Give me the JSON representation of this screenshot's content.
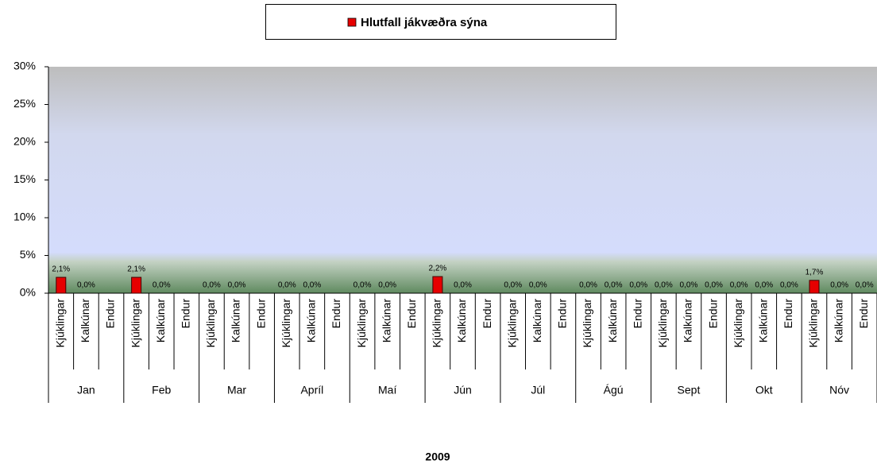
{
  "chart_data": {
    "type": "bar",
    "x_label": "2009",
    "groups": [
      "Jan",
      "Feb",
      "Mar",
      "Apríl",
      "Maí",
      "Jún",
      "Júl",
      "Ágú",
      "Sept",
      "Okt",
      "Nóv"
    ],
    "categories": [
      "Kjúklingar",
      "Kalkúnar",
      "Endur",
      "Kjúklingar",
      "Kalkúnar",
      "Endur",
      "Kjúklingar",
      "Kalkúnar",
      "Endur",
      "Kjúklingar",
      "Kalkúnar",
      "Endur",
      "Kjúklingar",
      "Kalkúnar",
      "Endur",
      "Kjúklingar",
      "Kalkúnar",
      "Endur",
      "Kjúklingar",
      "Kalkúnar",
      "Endur",
      "Kjúklingar",
      "Kalkúnar",
      "Endur",
      "Kjúklingar",
      "Kalkúnar",
      "Endur",
      "Kjúklingar",
      "Kalkúnar",
      "Endur",
      "Kjúklingar",
      "Kalkúnar",
      "Endur"
    ],
    "series": [
      {
        "name": "Hlutfall jákvæðra sýna",
        "color": "#e60000",
        "values": [
          2.1,
          0.0,
          null,
          2.1,
          0.0,
          null,
          0.0,
          0.0,
          null,
          0.0,
          0.0,
          null,
          0.0,
          0.0,
          null,
          2.2,
          0.0,
          null,
          0.0,
          0.0,
          null,
          0.0,
          0.0,
          0.0,
          0.0,
          0.0,
          0.0,
          0.0,
          0.0,
          0.0,
          1.7,
          0.0,
          0.0
        ],
        "value_labels": [
          "2,1%",
          "0,0%",
          null,
          "2,1%",
          "0,0%",
          null,
          "0,0%",
          "0,0%",
          null,
          "0,0%",
          "0,0%",
          null,
          "0,0%",
          "0,0%",
          null,
          "2,2%",
          "0,0%",
          null,
          "0,0%",
          "0,0%",
          null,
          "0,0%",
          "0,0%",
          "0,0%",
          "0,0%",
          "0,0%",
          "0,0%",
          "0,0%",
          "0,0%",
          "0,0%",
          "1,7%",
          "0,0%",
          "0,0%"
        ]
      }
    ],
    "ylim": [
      0,
      30
    ],
    "yticks": [
      {
        "value": 0,
        "label": "0%"
      },
      {
        "value": 5,
        "label": "5%"
      },
      {
        "value": 10,
        "label": "10%"
      },
      {
        "value": 15,
        "label": "15%"
      },
      {
        "value": 20,
        "label": "20%"
      },
      {
        "value": 25,
        "label": "25%"
      },
      {
        "value": 30,
        "label": "30%"
      }
    ]
  }
}
